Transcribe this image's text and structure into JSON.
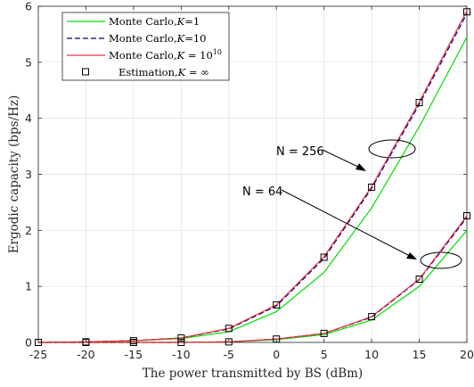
{
  "chart_data": {
    "type": "line",
    "xlabel": "The power transmitted by BS (dBm)",
    "ylabel": "Ergodic capacity (bps/Hz)",
    "xlim": [
      -25,
      20
    ],
    "ylim": [
      0,
      6
    ],
    "x_ticks": [
      "-25",
      "-20",
      "-15",
      "-10",
      "-5",
      "0",
      "5",
      "10",
      "15",
      "20"
    ],
    "y_ticks": [
      "0",
      "1",
      "2",
      "3",
      "4",
      "5",
      "6"
    ],
    "grid": true,
    "legend_position": "top-left",
    "x": [
      -25,
      -20,
      -15,
      -10,
      -5,
      0,
      5,
      10,
      15,
      20
    ],
    "series": [
      {
        "name": "Monte Carlo,K=1",
        "group": "N = 256",
        "color": "#00dd00",
        "style": "solid",
        "values": [
          0.0,
          0.01,
          0.03,
          0.07,
          0.19,
          0.55,
          1.25,
          2.4,
          3.85,
          5.45
        ]
      },
      {
        "name": "Monte Carlo,K=10",
        "group": "N = 256",
        "color": "#00008b",
        "style": "dashed",
        "values": [
          0.0,
          0.01,
          0.03,
          0.08,
          0.24,
          0.65,
          1.5,
          2.75,
          4.25,
          5.87
        ]
      },
      {
        "name": "Monte Carlo,K = 10^10",
        "group": "N = 256",
        "color": "#e8313a",
        "style": "solid",
        "values": [
          0.0,
          0.01,
          0.03,
          0.08,
          0.25,
          0.67,
          1.53,
          2.78,
          4.29,
          5.92
        ]
      },
      {
        "name": "Estimation,K = ∞",
        "group": "N = 256",
        "color": "#000000",
        "style": "markers",
        "values": [
          0.0,
          0.01,
          0.03,
          0.08,
          0.25,
          0.67,
          1.52,
          2.77,
          4.28,
          5.9
        ]
      },
      {
        "name": "Monte Carlo,K=1",
        "group": "N = 64",
        "color": "#00dd00",
        "style": "solid",
        "values": [
          0.0,
          0.0,
          0.0,
          0.0,
          0.01,
          0.05,
          0.14,
          0.4,
          1.0,
          2.0
        ]
      },
      {
        "name": "Monte Carlo,K=10",
        "group": "N = 64",
        "color": "#00008b",
        "style": "dashed",
        "values": [
          0.0,
          0.0,
          0.0,
          0.0,
          0.01,
          0.06,
          0.16,
          0.45,
          1.12,
          2.23
        ]
      },
      {
        "name": "Monte Carlo,K = 10^10",
        "group": "N = 64",
        "color": "#e8313a",
        "style": "solid",
        "values": [
          0.0,
          0.0,
          0.0,
          0.0,
          0.01,
          0.06,
          0.16,
          0.46,
          1.13,
          2.26
        ]
      },
      {
        "name": "Estimation,K = ∞",
        "group": "N = 64",
        "color": "#000000",
        "style": "markers",
        "values": [
          0.0,
          0.0,
          0.0,
          0.0,
          0.01,
          0.06,
          0.16,
          0.46,
          1.13,
          2.26
        ]
      }
    ],
    "legend": {
      "row1_text": "Monte Carlo,",
      "row1_k": "K",
      "row1_suffix": "=1",
      "row2_text": "Monte Carlo,",
      "row2_k": "K",
      "row2_suffix": "=10",
      "row3_text": "Monte Carlo,",
      "row3_k": "K",
      "row3_suffix": " = 10",
      "row3_sup": "10",
      "row4_text": "Estimation,",
      "row4_k": "K",
      "row4_suffix": " = ∞"
    },
    "annotations": [
      {
        "text": "N = 256"
      },
      {
        "text": "N = 64"
      }
    ]
  }
}
